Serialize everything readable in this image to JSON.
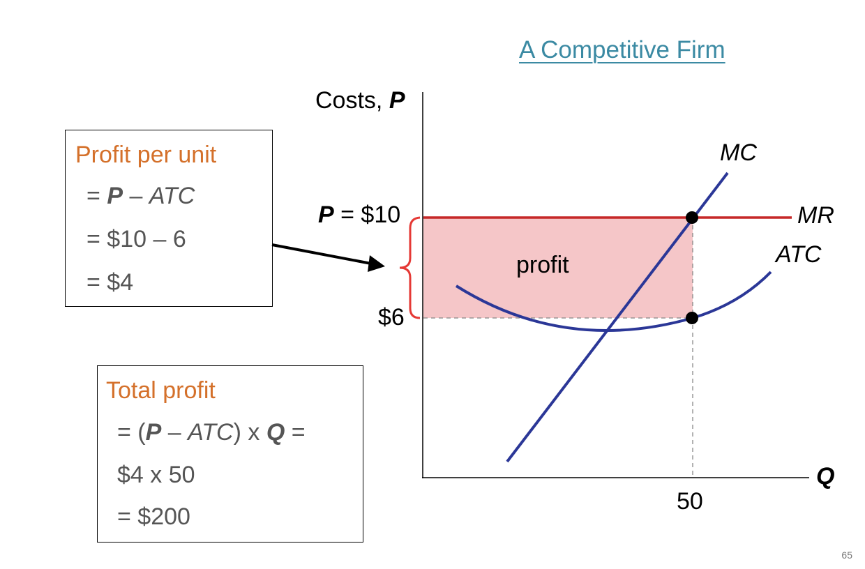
{
  "slide": {
    "title": "A Competitive Firm",
    "page_number": "65"
  },
  "profit_per_unit": {
    "heading": "Profit per unit",
    "lines": [
      "= P – ATC",
      "= $10 – 6",
      "= $4"
    ]
  },
  "total_profit": {
    "heading": "Total profit",
    "lines": [
      "= (P – ATC) x Q =",
      "$4 x 50",
      "= $200"
    ]
  },
  "chart": {
    "y_axis_label": "Costs, P",
    "x_axis_label": "Q",
    "price_label": "P = $10",
    "atc_label": "$6",
    "quantity_label": "50",
    "profit_area_label": "profit",
    "curves": {
      "mc": "MC",
      "mr": "MR",
      "atc": "ATC"
    },
    "colors": {
      "mr_line": "#c62828",
      "curves": "#2b3797",
      "profit_fill": "#f5c6c8",
      "brace": "#e53935"
    }
  }
}
